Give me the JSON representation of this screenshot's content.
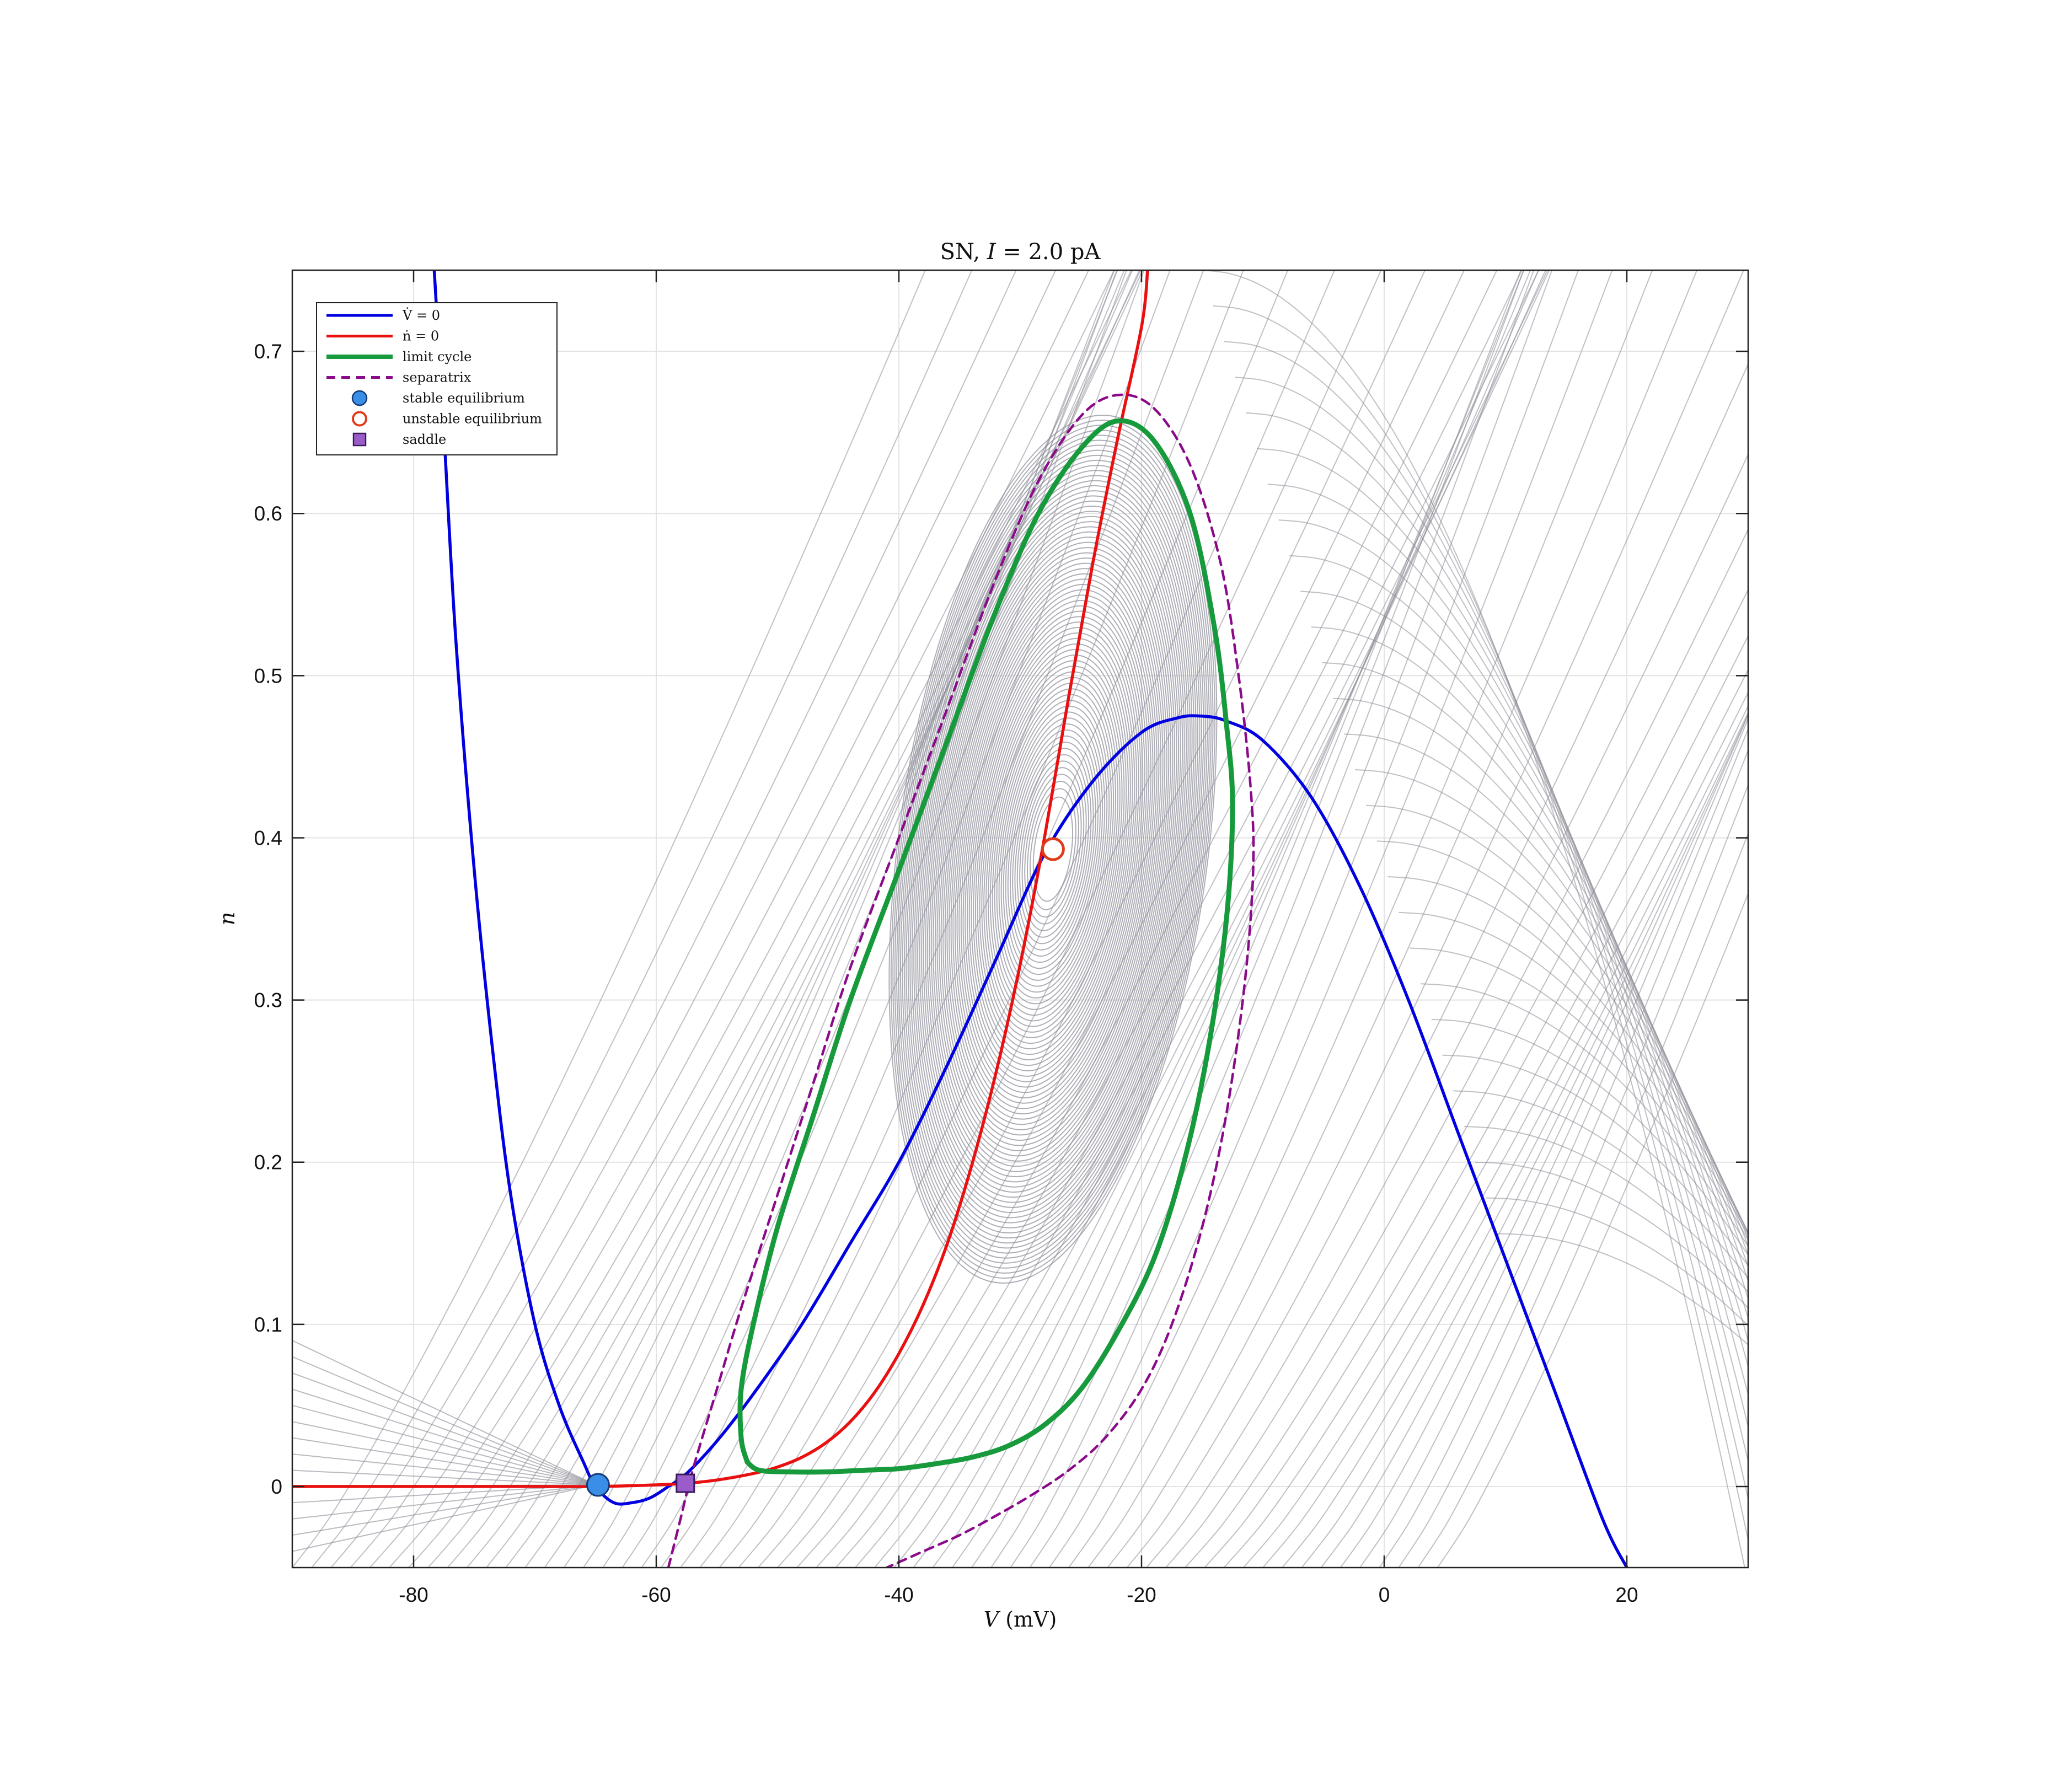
{
  "chart_data": {
    "type": "line",
    "title": "SN, I = 2.0 pA",
    "title_parts": {
      "prefix": "SN, ",
      "variable": "I",
      "rest": " = 2.0 pA"
    },
    "xlabel": "V (mV)",
    "xlabel_parts": {
      "variable": "V",
      "unit": " (mV)"
    },
    "ylabel": "n",
    "xlim": [
      -90,
      30
    ],
    "ylim": [
      -0.05,
      0.75
    ],
    "xticks": [
      -80,
      -60,
      -40,
      -20,
      0,
      20
    ],
    "xtick_labels": [
      "-80",
      "-60",
      "-40",
      "-20",
      "0",
      "20"
    ],
    "yticks": [
      0,
      0.1,
      0.2,
      0.3,
      0.4,
      0.5,
      0.6,
      0.7
    ],
    "ytick_labels": [
      "0",
      "0.1",
      "0.2",
      "0.3",
      "0.4",
      "0.5",
      "0.6",
      "0.7"
    ],
    "grid": true,
    "legend_position": "top-left",
    "legend": [
      {
        "label": "V̇ = 0",
        "style": "line",
        "color": "#0000e0"
      },
      {
        "label": "ṅ = 0",
        "style": "line",
        "color": "#e81010"
      },
      {
        "label": "limit cycle",
        "style": "line",
        "color": "#169a3c"
      },
      {
        "label": "separatrix",
        "style": "dashed",
        "color": "#8a0a8a"
      },
      {
        "label": "stable equilibrium",
        "style": "filled-circle",
        "color": "#3a8ee6"
      },
      {
        "label": "unstable equilibrium",
        "style": "open-circle",
        "color": "#e03c1c"
      },
      {
        "label": "saddle",
        "style": "square",
        "color": "#9a5cc8"
      }
    ],
    "series": [
      {
        "name": "V̇ = 0",
        "color": "#0000e0",
        "x": [
          -78.3,
          -77.5,
          -76.5,
          -75,
          -73.5,
          -72,
          -70,
          -68,
          -66,
          -65,
          -63.5,
          -62,
          -60.5,
          -59,
          -57.5,
          -55,
          -52,
          -48,
          -44,
          -40,
          -36,
          -32,
          -28,
          -24,
          -20,
          -17,
          -15,
          -13,
          -10,
          -6,
          -2,
          2,
          6,
          10,
          14,
          18,
          20
        ],
        "y": [
          0.75,
          0.65,
          0.52,
          0.38,
          0.27,
          0.18,
          0.1,
          0.05,
          0.015,
          0.0,
          -0.01,
          -0.01,
          -0.007,
          0.0,
          0.008,
          0.028,
          0.057,
          0.1,
          0.15,
          0.2,
          0.26,
          0.325,
          0.39,
          0.435,
          0.465,
          0.474,
          0.475,
          0.472,
          0.46,
          0.425,
          0.37,
          0.3,
          0.22,
          0.14,
          0.06,
          -0.02,
          -0.05
        ]
      },
      {
        "name": "ṅ = 0",
        "color": "#e81010",
        "x": [
          -90,
          -80,
          -70,
          -65,
          -60,
          -57.5,
          -55,
          -52,
          -50,
          -48,
          -46,
          -44,
          -42,
          -40,
          -38,
          -36,
          -34,
          -32,
          -30,
          -28,
          -26,
          -24,
          -22,
          -20,
          -19.5
        ],
        "y": [
          0.0,
          0.0,
          0.0,
          0.0,
          0.001,
          0.002,
          0.004,
          0.008,
          0.012,
          0.018,
          0.027,
          0.04,
          0.058,
          0.082,
          0.112,
          0.15,
          0.198,
          0.255,
          0.322,
          0.4,
          0.487,
          0.57,
          0.645,
          0.715,
          0.75
        ]
      },
      {
        "name": "limit cycle",
        "color": "#169a3c",
        "x": [
          -52.5,
          -53,
          -53,
          -52,
          -50,
          -47,
          -44,
          -40,
          -36,
          -32,
          -28.5,
          -25,
          -22,
          -19,
          -16,
          -14,
          -13,
          -12.5,
          -13,
          -14.5,
          -16.5,
          -19,
          -22,
          -25,
          -28,
          -31,
          -34,
          -37,
          -40,
          -43,
          -46,
          -49,
          -51.5,
          -52.5
        ],
        "y": [
          0.015,
          0.03,
          0.06,
          0.1,
          0.16,
          0.23,
          0.3,
          0.38,
          0.46,
          0.54,
          0.6,
          0.64,
          0.657,
          0.645,
          0.6,
          0.53,
          0.47,
          0.42,
          0.35,
          0.27,
          0.2,
          0.14,
          0.095,
          0.06,
          0.038,
          0.025,
          0.018,
          0.014,
          0.011,
          0.01,
          0.009,
          0.009,
          0.01,
          0.015
        ]
      },
      {
        "name": "separatrix",
        "color": "#8a0a8a",
        "x": [
          -59,
          -58,
          -57,
          -55,
          -53,
          -50,
          -47,
          -44,
          -40,
          -36,
          -32,
          -28.5,
          -25,
          -22,
          -19,
          -16,
          -13.5,
          -12,
          -11,
          -10.8,
          -11.5,
          -13,
          -15,
          -17.5,
          -20,
          -23,
          -26,
          -29,
          -32,
          -35,
          -38,
          -41
        ],
        "y": [
          -0.05,
          -0.02,
          0.01,
          0.06,
          0.11,
          0.18,
          0.25,
          0.32,
          0.4,
          0.48,
          0.56,
          0.62,
          0.66,
          0.673,
          0.665,
          0.63,
          0.57,
          0.5,
          0.43,
          0.38,
          0.31,
          0.23,
          0.16,
          0.1,
          0.06,
          0.03,
          0.01,
          -0.005,
          -0.018,
          -0.03,
          -0.04,
          -0.05
        ]
      }
    ],
    "equilibria": [
      {
        "name": "stable equilibrium",
        "V": -64.8,
        "n": 0.001
      },
      {
        "name": "unstable equilibrium",
        "V": -27.3,
        "n": 0.393
      },
      {
        "name": "saddle",
        "V": -57.6,
        "n": 0.002
      }
    ]
  }
}
